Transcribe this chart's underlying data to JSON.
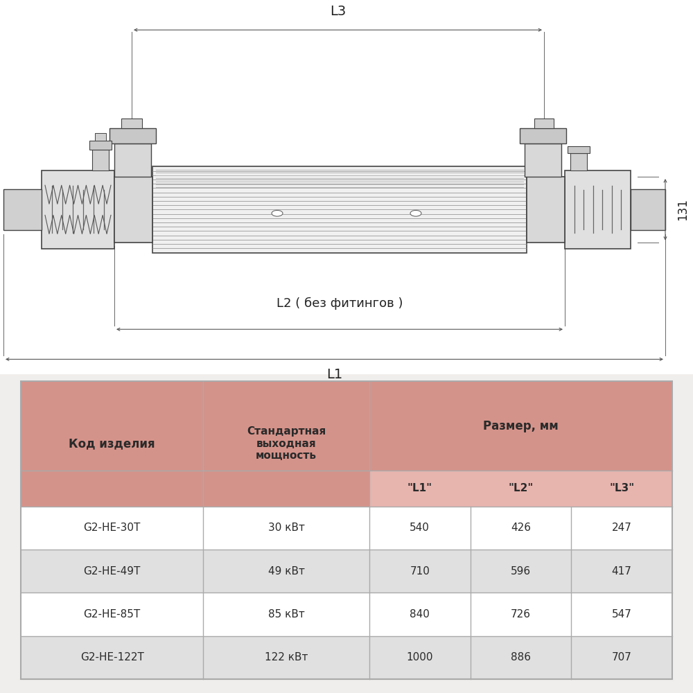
{
  "bg_color": "#f0eeec",
  "draw_bg": "#ffffff",
  "table_bg": "#ffffff",
  "header_pink": "#d4938a",
  "header_light_pink": "#e8b4ae",
  "row_white": "#ffffff",
  "row_gray": "#e0e0e0",
  "border_color": "#aaaaaa",
  "line_color": "#555555",
  "text_dark": "#2a2a2a",
  "col_header": [
    "Код изделия",
    "Стандартная\nвыходная\nмощность",
    "Размер, мм"
  ],
  "sub_col_header": [
    "\"L1\"",
    "\"L2\"",
    "\"L3\""
  ],
  "rows": [
    [
      "G2-HE-30T",
      "30 кВт",
      "540",
      "426",
      "247"
    ],
    [
      "G2-HE-49T",
      "49 кВт",
      "710",
      "596",
      "417"
    ],
    [
      "G2-HE-85T",
      "85 кВт",
      "840",
      "726",
      "547"
    ],
    [
      "G2-HE-122T",
      "122 кВт",
      "1000",
      "886",
      "707"
    ]
  ],
  "dim_131": "131",
  "dim_L1": "L1",
  "dim_L2": "L2 ( без фитингов )",
  "dim_L3": "L3"
}
